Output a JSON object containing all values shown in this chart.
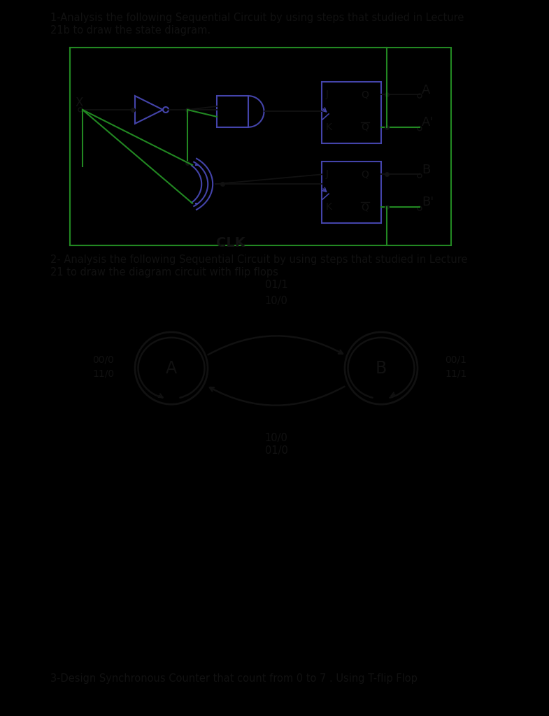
{
  "bg_top": "#a8a8a8",
  "bg_bot": "#b0b0b0",
  "bg_black": "#000000",
  "text_color": "#111111",
  "circuit_color": "#4444aa",
  "wire_color": "#228822",
  "line1": "1-Analysis the following Sequential Circuit by using steps that studied in Lecture",
  "line2": "21b to draw the state diagram.",
  "line3": "2- Analysis the following Sequential Circuit by using steps that studied in Lecture",
  "line4": "21 to draw the diagram circuit with flip flops",
  "line5": "3-Design Synchronous Counter that count from 0 to 7 . Using T-flip Flop",
  "clk_label": "CLK",
  "trans_AB_top": "01/1",
  "trans_AB_mid": "10/0",
  "trans_BA_mid": "10/0",
  "trans_BA_bot": "01/0",
  "self_A_label1": "00/0",
  "self_A_label2": "11/0",
  "self_B_label1": "00/1",
  "self_B_label2": "11/1"
}
